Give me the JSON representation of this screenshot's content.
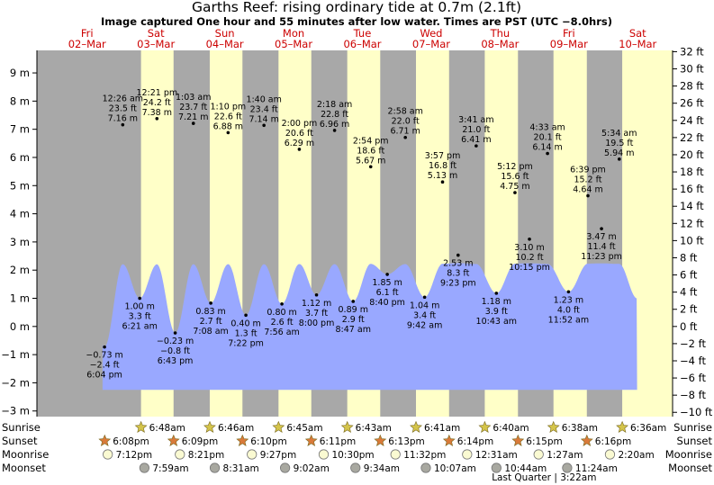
{
  "title": "Garths Reef: rising  ordinary tide at 0.7m (2.1ft)",
  "subtitle": "Image captured One hour and 55 minutes after low water. Times are PST (UTC −8.0hrs)",
  "colors": {
    "day": "#ffffc8",
    "night": "#a8a8a8",
    "water": "#99a8ff",
    "day_label": "#cc0000",
    "sun": "#d4c44a",
    "sunset": "#d97a3a",
    "moon": "#fafad2",
    "moonset": "#a8a8a0"
  },
  "days": [
    {
      "dow": "Fri",
      "date": "02–Mar"
    },
    {
      "dow": "Sat",
      "date": "03–Mar"
    },
    {
      "dow": "Sun",
      "date": "04–Mar"
    },
    {
      "dow": "Mon",
      "date": "05–Mar"
    },
    {
      "dow": "Tue",
      "date": "06–Mar"
    },
    {
      "dow": "Wed",
      "date": "07–Mar"
    },
    {
      "dow": "Thu",
      "date": "08–Mar"
    },
    {
      "dow": "Fri",
      "date": "09–Mar"
    },
    {
      "dow": "Sat",
      "date": "10–Mar"
    }
  ],
  "chart_data": {
    "type": "area",
    "x_unit": "hours after 00:00 Fri 02-Mar (PST)",
    "y_unit": "m",
    "ylim_m": [
      -3.2,
      9.8
    ],
    "ylim_ft": [
      -10,
      32
    ],
    "left_ticks": [
      "9 m",
      "8 m",
      "7 m",
      "6 m",
      "5 m",
      "4 m",
      "3 m",
      "2 m",
      "1 m",
      "0 m",
      "−1 m",
      "−2 m",
      "−3 m"
    ],
    "left_tick_values": [
      9,
      8,
      7,
      6,
      5,
      4,
      3,
      2,
      1,
      0,
      -1,
      -2,
      -3
    ],
    "right_ticks": [
      "32 ft",
      "30 ft",
      "28 ft",
      "26 ft",
      "24 ft",
      "22 ft",
      "20 ft",
      "18 ft",
      "16 ft",
      "14 ft",
      "12 ft",
      "10 ft",
      "8 ft",
      "6 ft",
      "4 ft",
      "2 ft",
      "0 ft",
      "−2 ft",
      "−4 ft",
      "−6 ft",
      "−8 ft",
      "−10 ft"
    ],
    "right_tick_values": [
      32,
      30,
      28,
      26,
      24,
      22,
      20,
      18,
      16,
      14,
      12,
      10,
      8,
      6,
      4,
      2,
      0,
      -2,
      -4,
      -6,
      -8,
      -10
    ],
    "events": [
      {
        "kind": "low",
        "h": 18.07,
        "m": -0.73,
        "lines": [
          "−0.73 m",
          "−2.4 ft",
          "6:04 pm"
        ]
      },
      {
        "kind": "high",
        "h": 24.43,
        "m": 7.16,
        "lines": [
          "12:26 am",
          "23.5 ft",
          "7.16 m"
        ]
      },
      {
        "kind": "low",
        "h": 30.35,
        "m": 1.0,
        "lines": [
          "1.00 m",
          "3.3 ft",
          "6:21 am"
        ]
      },
      {
        "kind": "high",
        "h": 36.35,
        "m": 7.38,
        "lines": [
          "12:21 pm",
          "24.2 ft",
          "7.38 m"
        ]
      },
      {
        "kind": "low",
        "h": 42.72,
        "m": -0.23,
        "lines": [
          "−0.23 m",
          "−0.8 ft",
          "6:43 pm"
        ]
      },
      {
        "kind": "high",
        "h": 49.05,
        "m": 7.21,
        "lines": [
          "1:03 am",
          "23.7 ft",
          "7.21 m"
        ]
      },
      {
        "kind": "low",
        "h": 55.13,
        "m": 0.83,
        "lines": [
          "0.83 m",
          "2.7 ft",
          "7:08 am"
        ]
      },
      {
        "kind": "high",
        "h": 61.17,
        "m": 6.88,
        "lines": [
          "1:10 pm",
          "22.6 ft",
          "6.88 m"
        ]
      },
      {
        "kind": "low",
        "h": 67.37,
        "m": 0.4,
        "lines": [
          "0.40 m",
          "1.3 ft",
          "7:22 pm"
        ]
      },
      {
        "kind": "high",
        "h": 73.67,
        "m": 7.14,
        "lines": [
          "1:40 am",
          "23.4 ft",
          "7.14 m"
        ]
      },
      {
        "kind": "low",
        "h": 79.93,
        "m": 0.8,
        "lines": [
          "0.80 m",
          "2.6 ft",
          "7:56 am"
        ]
      },
      {
        "kind": "high",
        "h": 86.0,
        "m": 6.29,
        "lines": [
          "2:00 pm",
          "20.6 ft",
          "6.29 m"
        ]
      },
      {
        "kind": "low",
        "h": 92.0,
        "m": 1.12,
        "lines": [
          "1.12 m",
          "3.7 ft",
          "8:00 pm"
        ]
      },
      {
        "kind": "high",
        "h": 98.3,
        "m": 6.96,
        "lines": [
          "2:18 am",
          "22.8 ft",
          "6.96 m"
        ]
      },
      {
        "kind": "low",
        "h": 104.78,
        "m": 0.89,
        "lines": [
          "0.89 m",
          "2.9 ft",
          "8:47 am"
        ]
      },
      {
        "kind": "high",
        "h": 110.9,
        "m": 5.67,
        "lines": [
          "2:54 pm",
          "18.6 ft",
          "5.67 m"
        ]
      },
      {
        "kind": "low",
        "h": 116.67,
        "m": 1.85,
        "lines": [
          "1.85 m",
          "6.1 ft",
          "8:40 pm"
        ]
      },
      {
        "kind": "high",
        "h": 122.97,
        "m": 6.71,
        "lines": [
          "2:58 am",
          "22.0 ft",
          "6.71 m"
        ]
      },
      {
        "kind": "low",
        "h": 129.7,
        "m": 1.04,
        "lines": [
          "1.04 m",
          "3.4 ft",
          "9:42 am"
        ]
      },
      {
        "kind": "high",
        "h": 135.95,
        "m": 5.13,
        "lines": [
          "3:57 pm",
          "16.8 ft",
          "5.13 m"
        ]
      },
      {
        "kind": "low",
        "h": 141.38,
        "m": 2.53,
        "lines": [
          "2.53 m",
          "8.3 ft",
          "9:23 pm"
        ]
      },
      {
        "kind": "high",
        "h": 147.68,
        "m": 6.41,
        "lines": [
          "3:41 am",
          "21.0 ft",
          "6.41 m"
        ]
      },
      {
        "kind": "low",
        "h": 154.72,
        "m": 1.18,
        "lines": [
          "1.18 m",
          "3.9 ft",
          "10:43 am"
        ]
      },
      {
        "kind": "high",
        "h": 161.2,
        "m": 4.75,
        "lines": [
          "5:12 pm",
          "15.6 ft",
          "4.75 m"
        ]
      },
      {
        "kind": "low",
        "h": 166.25,
        "m": 3.1,
        "lines": [
          "3.10 m",
          "10.2 ft",
          "10:15 pm"
        ]
      },
      {
        "kind": "high",
        "h": 172.55,
        "m": 6.14,
        "lines": [
          "4:33 am",
          "20.1 ft",
          "6.14 m"
        ]
      },
      {
        "kind": "low",
        "h": 179.87,
        "m": 1.23,
        "lines": [
          "1.23 m",
          "4.0 ft",
          "11:52 am"
        ]
      },
      {
        "kind": "high",
        "h": 186.65,
        "m": 4.64,
        "lines": [
          "6:39 pm",
          "15.2 ft",
          "4.64 m"
        ]
      },
      {
        "kind": "low",
        "h": 191.38,
        "m": 3.47,
        "lines": [
          "3.47 m",
          "11.4 ft",
          "11:23 pm"
        ]
      },
      {
        "kind": "high",
        "h": 197.57,
        "m": 5.94,
        "lines": [
          "5:34 am",
          "19.5 ft",
          "5.94 m"
        ]
      }
    ],
    "nights": [
      [
        -24,
        30.8
      ],
      [
        42.15,
        54.77
      ],
      [
        66.17,
        78.75
      ],
      [
        90.18,
        102.72
      ],
      [
        114.22,
        126.68
      ],
      [
        138.23,
        150.67
      ],
      [
        162.25,
        174.63
      ],
      [
        186.27,
        198.6
      ]
    ],
    "sunrise": [
      {
        "h": 30.8,
        "text": "6:48am"
      },
      {
        "h": 54.77,
        "text": "6:46am"
      },
      {
        "h": 78.75,
        "text": "6:45am"
      },
      {
        "h": 102.72,
        "text": "6:43am"
      },
      {
        "h": 126.68,
        "text": "6:41am"
      },
      {
        "h": 150.67,
        "text": "6:40am"
      },
      {
        "h": 174.63,
        "text": "6:38am"
      },
      {
        "h": 198.6,
        "text": "6:36am"
      }
    ],
    "sunset": [
      {
        "h": 18.13,
        "text": "6:08pm"
      },
      {
        "h": 42.15,
        "text": "6:09pm"
      },
      {
        "h": 66.17,
        "text": "6:10pm"
      },
      {
        "h": 90.18,
        "text": "6:11pm"
      },
      {
        "h": 114.22,
        "text": "6:13pm"
      },
      {
        "h": 138.23,
        "text": "6:14pm"
      },
      {
        "h": 162.25,
        "text": "6:15pm"
      },
      {
        "h": 186.27,
        "text": "6:16pm"
      }
    ],
    "moonrise": [
      {
        "h": 19.2,
        "text": "7:12pm"
      },
      {
        "h": 44.35,
        "text": "8:21pm"
      },
      {
        "h": 69.45,
        "text": "9:27pm"
      },
      {
        "h": 94.5,
        "text": "10:30pm"
      },
      {
        "h": 119.53,
        "text": "11:32pm"
      },
      {
        "h": 144.52,
        "text": "12:31am"
      },
      {
        "h": 169.45,
        "text": "1:27am"
      },
      {
        "h": 194.33,
        "text": "2:20am"
      }
    ],
    "moonset": [
      {
        "h": 31.98,
        "text": "7:59am"
      },
      {
        "h": 56.52,
        "text": "8:31am"
      },
      {
        "h": 81.03,
        "text": "9:02am"
      },
      {
        "h": 105.57,
        "text": "9:34am"
      },
      {
        "h": 130.12,
        "text": "10:07am"
      },
      {
        "h": 154.73,
        "text": "10:44am"
      },
      {
        "h": 179.4,
        "text": "11:24am"
      }
    ],
    "moon_phase": {
      "h": 171.37,
      "text": "Last Quarter | 3:22am"
    },
    "row_labels": [
      "Sunrise",
      "Sunset",
      "Moonrise",
      "Moonset"
    ]
  }
}
